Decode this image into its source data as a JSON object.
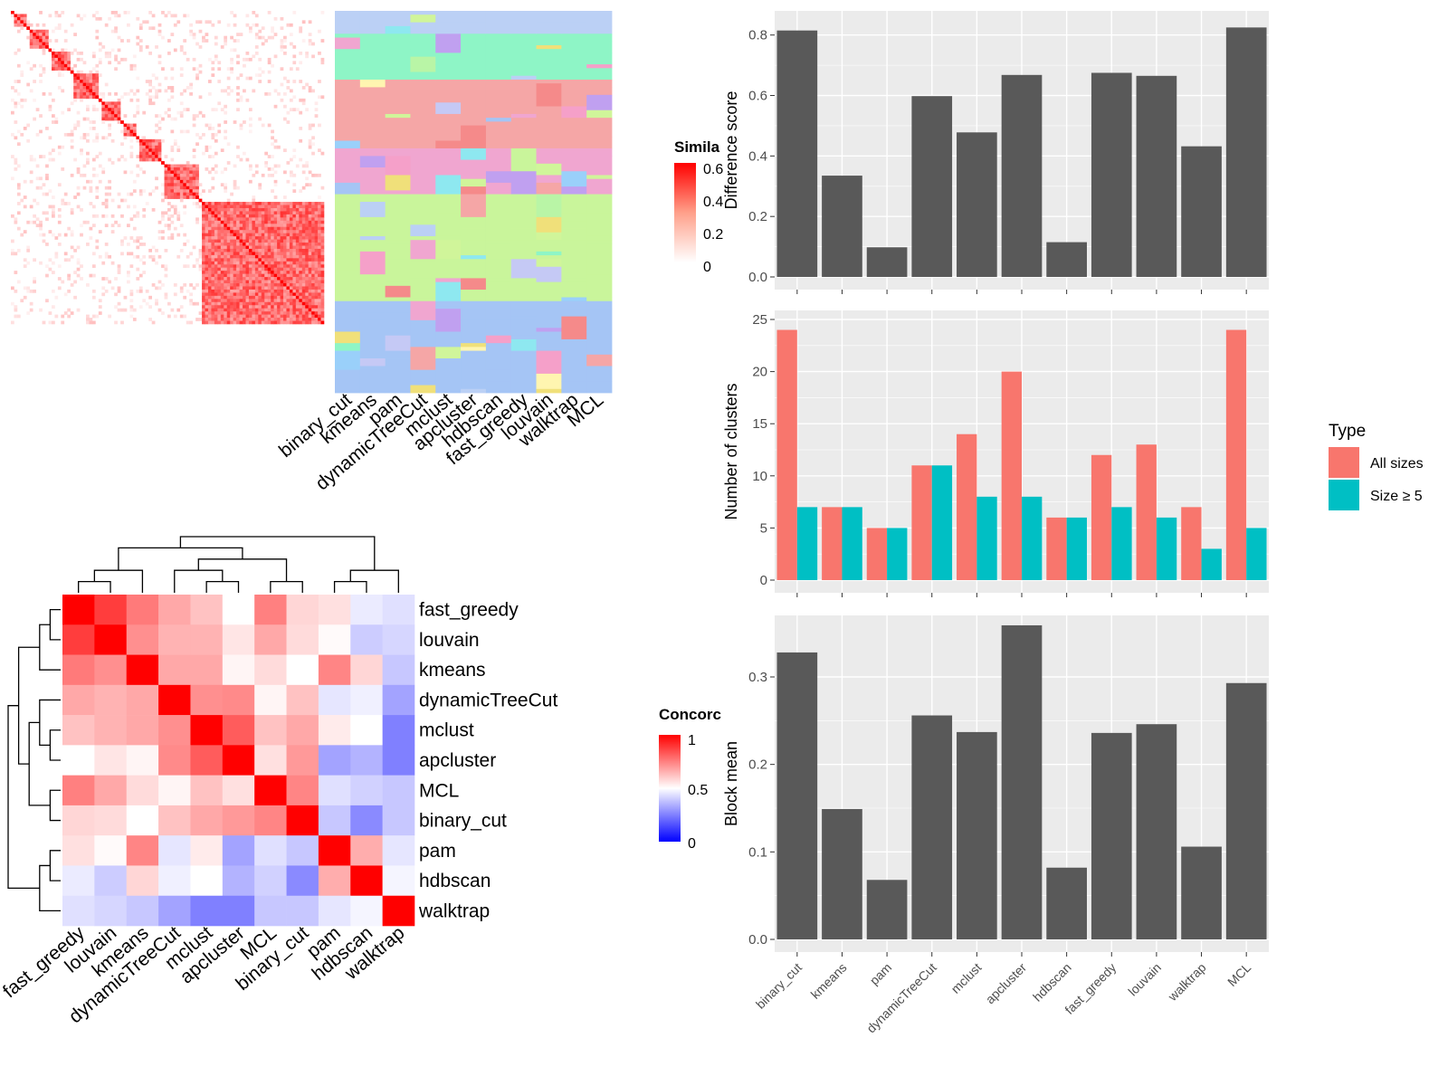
{
  "methods": [
    "binary_cut",
    "kmeans",
    "pam",
    "dynamicTreeCut",
    "mclust",
    "apcluster",
    "hdbscan",
    "fast_greedy",
    "louvain",
    "walktrap",
    "MCL"
  ],
  "colors": {
    "panel_bg": "#EBEBEB",
    "gridline": "#FFFFFF",
    "bar": "#595959",
    "all_sizes": "#F8766D",
    "size_ge5": "#00BFC4",
    "sim_high": "#FF0000",
    "sim_low": "#FFFFFF",
    "conc_low": "#0000FF",
    "conc_mid": "#FFFFFF",
    "conc_high": "#FF0000"
  },
  "heatmap_top": {
    "legend_title": "Simila",
    "legend_ticks": [
      "0.6",
      "0.4",
      "0.2",
      "0"
    ],
    "column_labels": [
      "binary_cut",
      "kmeans",
      "pam",
      "dynamicTreeCut",
      "mclust",
      "apcluster",
      "hdbscan",
      "fast_greedy",
      "louvain",
      "walktrap",
      "MCL"
    ],
    "cluster_palette": [
      "#BBD0F5",
      "#8EF5C6",
      "#F5A6A6",
      "#F0A6D0",
      "#C9F59B",
      "#A5C5F5",
      "#C5C9F5",
      "#FFF5B0",
      "#B9F5A6",
      "#F5A0C9",
      "#C0A0F0",
      "#8EE8F0",
      "#F0E07A",
      "#F58A8A",
      "#9AD0FA",
      "#D0F59A"
    ]
  },
  "heatmap_bottom": {
    "legend_title": "Concorc",
    "legend_ticks": [
      "1",
      "0.5",
      "0"
    ],
    "order": [
      "fast_greedy",
      "louvain",
      "kmeans",
      "dynamicTreeCut",
      "mclust",
      "apcluster",
      "MCL",
      "binary_cut",
      "pam",
      "hdbscan",
      "walktrap"
    ],
    "matrix": [
      [
        1.0,
        0.88,
        0.76,
        0.67,
        0.62,
        0.5,
        0.75,
        0.58,
        0.56,
        0.46,
        0.44
      ],
      [
        0.88,
        1.0,
        0.72,
        0.65,
        0.65,
        0.55,
        0.67,
        0.57,
        0.51,
        0.4,
        0.42
      ],
      [
        0.76,
        0.72,
        1.0,
        0.67,
        0.67,
        0.52,
        0.57,
        0.5,
        0.74,
        0.58,
        0.39
      ],
      [
        0.67,
        0.65,
        0.67,
        1.0,
        0.72,
        0.73,
        0.52,
        0.62,
        0.45,
        0.47,
        0.32
      ],
      [
        0.62,
        0.65,
        0.67,
        0.72,
        1.0,
        0.82,
        0.62,
        0.67,
        0.54,
        0.5,
        0.25
      ],
      [
        0.5,
        0.55,
        0.52,
        0.73,
        0.82,
        1.0,
        0.56,
        0.7,
        0.32,
        0.35,
        0.25
      ],
      [
        0.75,
        0.67,
        0.57,
        0.52,
        0.62,
        0.56,
        1.0,
        0.74,
        0.44,
        0.41,
        0.39
      ],
      [
        0.58,
        0.57,
        0.5,
        0.62,
        0.67,
        0.7,
        0.74,
        1.0,
        0.39,
        0.27,
        0.39
      ],
      [
        0.56,
        0.51,
        0.74,
        0.45,
        0.54,
        0.32,
        0.44,
        0.39,
        1.0,
        0.66,
        0.45
      ],
      [
        0.46,
        0.4,
        0.58,
        0.47,
        0.5,
        0.35,
        0.41,
        0.27,
        0.66,
        1.0,
        0.48
      ],
      [
        0.44,
        0.42,
        0.39,
        0.32,
        0.25,
        0.25,
        0.39,
        0.39,
        0.45,
        0.48,
        1.0
      ]
    ]
  },
  "chart_data": [
    {
      "type": "bar",
      "categories": [
        "binary_cut",
        "kmeans",
        "pam",
        "dynamicTreeCut",
        "mclust",
        "apcluster",
        "hdbscan",
        "fast_greedy",
        "louvain",
        "walktrap",
        "MCL"
      ],
      "values": [
        0.815,
        0.335,
        0.098,
        0.598,
        0.478,
        0.668,
        0.115,
        0.675,
        0.665,
        0.432,
        0.825
      ],
      "ylabel": "Difference score",
      "ylim": [
        0,
        0.85
      ],
      "yticks": [
        "0.0",
        "0.2",
        "0.4",
        "0.6",
        "0.8"
      ]
    },
    {
      "type": "bar",
      "categories": [
        "binary_cut",
        "kmeans",
        "pam",
        "dynamicTreeCut",
        "mclust",
        "apcluster",
        "hdbscan",
        "fast_greedy",
        "louvain",
        "walktrap",
        "MCL"
      ],
      "series": [
        {
          "name": "All sizes",
          "values": [
            24,
            7,
            5,
            11,
            14,
            20,
            6,
            12,
            13,
            7,
            24
          ]
        },
        {
          "name": "Size ≥ 5",
          "values": [
            7,
            7,
            5,
            11,
            8,
            8,
            6,
            7,
            6,
            3,
            5
          ]
        }
      ],
      "ylabel": "Number of clusters",
      "ylim": [
        0,
        25
      ],
      "yticks": [
        "0",
        "5",
        "10",
        "15",
        "20",
        "25"
      ],
      "legend": {
        "title": "Type",
        "position": "right"
      }
    },
    {
      "type": "bar",
      "categories": [
        "binary_cut",
        "kmeans",
        "pam",
        "dynamicTreeCut",
        "mclust",
        "apcluster",
        "hdbscan",
        "fast_greedy",
        "louvain",
        "walktrap",
        "MCL"
      ],
      "values": [
        0.328,
        0.149,
        0.068,
        0.256,
        0.237,
        0.359,
        0.082,
        0.236,
        0.246,
        0.106,
        0.293
      ],
      "ylabel": "Block mean",
      "ylim": [
        0,
        0.36
      ],
      "yticks": [
        "0.0",
        "0.1",
        "0.2",
        "0.3"
      ]
    }
  ]
}
